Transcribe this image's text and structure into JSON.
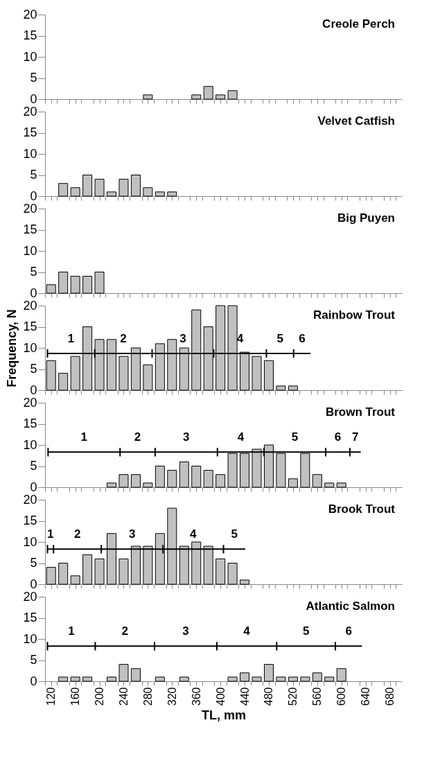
{
  "chart_data": [
    {
      "type": "bar",
      "title": "Creole Perch",
      "xlim": [
        110,
        700
      ],
      "ylim": [
        0,
        20
      ],
      "yticks": [
        0,
        5,
        10,
        15,
        20
      ],
      "tick_labels": "y",
      "xticks": [
        {
          "value": 110,
          "label": null
        },
        120,
        {
          "value": 130,
          "label": null
        },
        {
          "value": 150,
          "label": null
        },
        160,
        {
          "value": 170,
          "label": null
        },
        {
          "value": 190,
          "label": null
        },
        200,
        {
          "value": 210,
          "label": null
        },
        {
          "value": 230,
          "label": null
        },
        240,
        {
          "value": 250,
          "label": null
        },
        {
          "value": 270,
          "label": null
        },
        280,
        {
          "value": 290,
          "label": null
        },
        {
          "value": 310,
          "label": null
        },
        320,
        {
          "value": 330,
          "label": null
        },
        {
          "value": 350,
          "label": null
        },
        360,
        {
          "value": 370,
          "label": null
        },
        {
          "value": 390,
          "label": null
        },
        400,
        {
          "value": 410,
          "label": null
        },
        {
          "value": 430,
          "label": null
        },
        440,
        {
          "value": 450,
          "label": null
        },
        {
          "value": 470,
          "label": null
        },
        480,
        {
          "value": 490,
          "label": null
        },
        {
          "value": 510,
          "label": null
        },
        520,
        {
          "value": 530,
          "label": null
        },
        {
          "value": 550,
          "label": null
        },
        560,
        {
          "value": 570,
          "label": null
        },
        {
          "value": 590,
          "label": null
        },
        600,
        {
          "value": 610,
          "label": null
        },
        {
          "value": 630,
          "label": null
        },
        640,
        {
          "value": 650,
          "label": null
        },
        {
          "value": 670,
          "label": null
        },
        680,
        {
          "value": 690,
          "label": null
        }
      ],
      "series": [
        {
          "color": "#c0c0c0",
          "x": [
            280,
            360,
            380,
            400,
            420
          ],
          "values": [
            1,
            1,
            3,
            1,
            2
          ]
        }
      ]
    },
    {
      "type": "bar",
      "title": "Velvet Catfish",
      "xlim": [
        110,
        700
      ],
      "ylim": [
        0,
        20
      ],
      "yticks": [
        0,
        5,
        10,
        15,
        20
      ],
      "tick_labels": "y",
      "xticks": [
        {
          "value": 110,
          "label": null
        },
        120,
        {
          "value": 130,
          "label": null
        },
        {
          "value": 150,
          "label": null
        },
        160,
        {
          "value": 170,
          "label": null
        },
        {
          "value": 190,
          "label": null
        },
        200,
        {
          "value": 210,
          "label": null
        },
        {
          "value": 230,
          "label": null
        },
        240,
        {
          "value": 250,
          "label": null
        },
        {
          "value": 270,
          "label": null
        },
        280,
        {
          "value": 290,
          "label": null
        },
        {
          "value": 310,
          "label": null
        },
        320,
        {
          "value": 330,
          "label": null
        },
        {
          "value": 350,
          "label": null
        },
        360,
        {
          "value": 370,
          "label": null
        },
        {
          "value": 390,
          "label": null
        },
        400,
        {
          "value": 410,
          "label": null
        },
        {
          "value": 430,
          "label": null
        },
        440,
        {
          "value": 450,
          "label": null
        },
        {
          "value": 470,
          "label": null
        },
        480,
        {
          "value": 490,
          "label": null
        },
        {
          "value": 510,
          "label": null
        },
        520,
        {
          "value": 530,
          "label": null
        },
        {
          "value": 550,
          "label": null
        },
        560,
        {
          "value": 570,
          "label": null
        },
        {
          "value": 590,
          "label": null
        },
        600,
        {
          "value": 610,
          "label": null
        },
        {
          "value": 630,
          "label": null
        },
        640,
        {
          "value": 650,
          "label": null
        },
        {
          "value": 670,
          "label": null
        },
        680,
        {
          "value": 690,
          "label": null
        }
      ],
      "series": [
        {
          "color": "#c0c0c0",
          "x": [
            140,
            160,
            180,
            200,
            220,
            240,
            260,
            280,
            300,
            320
          ],
          "values": [
            3,
            2,
            5,
            4,
            1,
            4,
            5,
            2,
            1,
            1
          ]
        }
      ]
    },
    {
      "type": "bar",
      "title": "Big Puyen",
      "xlim": [
        110,
        700
      ],
      "ylim": [
        0,
        20
      ],
      "yticks": [
        0,
        5,
        10,
        15,
        20
      ],
      "tick_labels": "y",
      "xticks": [
        {
          "value": 110,
          "label": null
        },
        120,
        {
          "value": 130,
          "label": null
        },
        {
          "value": 150,
          "label": null
        },
        160,
        {
          "value": 170,
          "label": null
        },
        {
          "value": 190,
          "label": null
        },
        200,
        {
          "value": 210,
          "label": null
        },
        {
          "value": 230,
          "label": null
        },
        240,
        {
          "value": 250,
          "label": null
        },
        {
          "value": 270,
          "label": null
        },
        280,
        {
          "value": 290,
          "label": null
        },
        {
          "value": 310,
          "label": null
        },
        320,
        {
          "value": 330,
          "label": null
        },
        {
          "value": 350,
          "label": null
        },
        360,
        {
          "value": 370,
          "label": null
        },
        {
          "value": 390,
          "label": null
        },
        400,
        {
          "value": 410,
          "label": null
        },
        {
          "value": 430,
          "label": null
        },
        440,
        {
          "value": 450,
          "label": null
        },
        {
          "value": 470,
          "label": null
        },
        480,
        {
          "value": 490,
          "label": null
        },
        {
          "value": 510,
          "label": null
        },
        520,
        {
          "value": 530,
          "label": null
        },
        {
          "value": 550,
          "label": null
        },
        560,
        {
          "value": 570,
          "label": null
        },
        {
          "value": 590,
          "label": null
        },
        600,
        {
          "value": 610,
          "label": null
        },
        {
          "value": 630,
          "label": null
        },
        640,
        {
          "value": 650,
          "label": null
        },
        {
          "value": 670,
          "label": null
        },
        680,
        {
          "value": 690,
          "label": null
        }
      ],
      "series": [
        {
          "color": "#c0c0c0",
          "x": [
            120,
            140,
            160,
            180,
            200
          ],
          "values": [
            2,
            5,
            4,
            4,
            5
          ]
        }
      ]
    },
    {
      "type": "bar",
      "title": "Rainbow Trout",
      "ylabel": "Frequency, N",
      "xlim": [
        110,
        700
      ],
      "ylim": [
        0,
        20
      ],
      "yticks": [
        0,
        5,
        10,
        15,
        20
      ],
      "tick_labels": "y",
      "xticks": [
        {
          "value": 110,
          "label": null
        },
        120,
        {
          "value": 130,
          "label": null
        },
        {
          "value": 150,
          "label": null
        },
        160,
        {
          "value": 170,
          "label": null
        },
        {
          "value": 190,
          "label": null
        },
        200,
        {
          "value": 210,
          "label": null
        },
        {
          "value": 230,
          "label": null
        },
        240,
        {
          "value": 250,
          "label": null
        },
        {
          "value": 270,
          "label": null
        },
        280,
        {
          "value": 290,
          "label": null
        },
        {
          "value": 310,
          "label": null
        },
        320,
        {
          "value": 330,
          "label": null
        },
        {
          "value": 350,
          "label": null
        },
        360,
        {
          "value": 370,
          "label": null
        },
        {
          "value": 390,
          "label": null
        },
        400,
        {
          "value": 410,
          "label": null
        },
        {
          "value": 430,
          "label": null
        },
        440,
        {
          "value": 450,
          "label": null
        },
        {
          "value": 470,
          "label": null
        },
        480,
        {
          "value": 490,
          "label": null
        },
        {
          "value": 510,
          "label": null
        },
        520,
        {
          "value": 530,
          "label": null
        },
        {
          "value": 550,
          "label": null
        },
        560,
        {
          "value": 570,
          "label": null
        },
        {
          "value": 590,
          "label": null
        },
        600,
        {
          "value": 610,
          "label": null
        },
        {
          "value": 630,
          "label": null
        },
        640,
        {
          "value": 650,
          "label": null
        },
        {
          "value": 670,
          "label": null
        },
        680,
        {
          "value": 690,
          "label": null
        }
      ],
      "series": [
        {
          "color": "#c0c0c0",
          "x": [
            120,
            140,
            160,
            180,
            200,
            220,
            240,
            260,
            280,
            300,
            320,
            340,
            360,
            380,
            400,
            420,
            440,
            460,
            480,
            500,
            520
          ],
          "values": [
            7,
            4,
            8,
            15,
            12,
            12,
            8,
            10,
            6,
            11,
            12,
            10,
            19,
            15,
            20,
            20,
            9,
            8,
            7,
            1,
            1
          ]
        },
        {
          "type": "line",
          "color": "#000000",
          "x": [
            114,
            192,
            287,
            389,
            476,
            521,
            549
          ],
          "values": [
            8.7,
            8.7,
            8.7,
            8.7,
            8.7,
            8.7,
            8.7
          ],
          "errors": [
            1,
            1,
            1,
            1,
            1,
            1,
            null
          ]
        }
      ],
      "annotations": [
        "1",
        "2",
        "3",
        "4",
        "5",
        "6"
      ]
    },
    {
      "type": "bar",
      "title": "Brown Trout",
      "xlim": [
        110,
        700
      ],
      "ylim": [
        0,
        20
      ],
      "yticks": [
        0,
        5,
        10,
        15,
        20
      ],
      "tick_labels": "y",
      "xticks": [
        {
          "value": 110,
          "label": null
        },
        120,
        {
          "value": 130,
          "label": null
        },
        {
          "value": 150,
          "label": null
        },
        160,
        {
          "value": 170,
          "label": null
        },
        {
          "value": 190,
          "label": null
        },
        200,
        {
          "value": 210,
          "label": null
        },
        {
          "value": 230,
          "label": null
        },
        240,
        {
          "value": 250,
          "label": null
        },
        {
          "value": 270,
          "label": null
        },
        280,
        {
          "value": 290,
          "label": null
        },
        {
          "value": 310,
          "label": null
        },
        320,
        {
          "value": 330,
          "label": null
        },
        {
          "value": 350,
          "label": null
        },
        360,
        {
          "value": 370,
          "label": null
        },
        {
          "value": 390,
          "label": null
        },
        400,
        {
          "value": 410,
          "label": null
        },
        {
          "value": 430,
          "label": null
        },
        440,
        {
          "value": 450,
          "label": null
        },
        {
          "value": 470,
          "label": null
        },
        480,
        {
          "value": 490,
          "label": null
        },
        {
          "value": 510,
          "label": null
        },
        520,
        {
          "value": 530,
          "label": null
        },
        {
          "value": 550,
          "label": null
        },
        560,
        {
          "value": 570,
          "label": null
        },
        {
          "value": 590,
          "label": null
        },
        600,
        {
          "value": 610,
          "label": null
        },
        {
          "value": 630,
          "label": null
        },
        640,
        {
          "value": 650,
          "label": null
        },
        {
          "value": 670,
          "label": null
        },
        680,
        {
          "value": 690,
          "label": null
        }
      ],
      "series": [
        {
          "color": "#c0c0c0",
          "x": [
            220,
            240,
            260,
            280,
            300,
            320,
            340,
            360,
            380,
            400,
            420,
            440,
            460,
            480,
            500,
            520,
            540,
            560,
            580,
            600
          ],
          "values": [
            1,
            3,
            3,
            1,
            5,
            4,
            6,
            5,
            4,
            3,
            8,
            8,
            9,
            10,
            8,
            2,
            8,
            3,
            1,
            1
          ]
        },
        {
          "type": "line",
          "color": "#000000",
          "x": [
            115,
            234,
            292,
            395,
            472,
            574,
            614,
            632
          ],
          "values": [
            8.3,
            8.3,
            8.3,
            8.3,
            8.3,
            8.3,
            8.3,
            8.3
          ],
          "errors": [
            1,
            1,
            1,
            1,
            1,
            1,
            1,
            null
          ]
        }
      ],
      "annotations": [
        "1",
        "2",
        "3",
        "4",
        "5",
        "6",
        "7"
      ]
    },
    {
      "type": "bar",
      "title": "Brook Trout",
      "xlim": [
        110,
        700
      ],
      "ylim": [
        0,
        20
      ],
      "yticks": [
        0,
        5,
        10,
        15,
        20
      ],
      "tick_labels": "y",
      "xticks": [
        {
          "value": 110,
          "label": null
        },
        120,
        {
          "value": 130,
          "label": null
        },
        {
          "value": 150,
          "label": null
        },
        160,
        {
          "value": 170,
          "label": null
        },
        {
          "value": 190,
          "label": null
        },
        200,
        {
          "value": 210,
          "label": null
        },
        {
          "value": 230,
          "label": null
        },
        240,
        {
          "value": 250,
          "label": null
        },
        {
          "value": 270,
          "label": null
        },
        280,
        {
          "value": 290,
          "label": null
        },
        {
          "value": 310,
          "label": null
        },
        320,
        {
          "value": 330,
          "label": null
        },
        {
          "value": 350,
          "label": null
        },
        360,
        {
          "value": 370,
          "label": null
        },
        {
          "value": 390,
          "label": null
        },
        400,
        {
          "value": 410,
          "label": null
        },
        {
          "value": 430,
          "label": null
        },
        440,
        {
          "value": 450,
          "label": null
        },
        {
          "value": 470,
          "label": null
        },
        480,
        {
          "value": 490,
          "label": null
        },
        {
          "value": 510,
          "label": null
        },
        520,
        {
          "value": 530,
          "label": null
        },
        {
          "value": 550,
          "label": null
        },
        560,
        {
          "value": 570,
          "label": null
        },
        {
          "value": 590,
          "label": null
        },
        600,
        {
          "value": 610,
          "label": null
        },
        {
          "value": 630,
          "label": null
        },
        640,
        {
          "value": 650,
          "label": null
        },
        {
          "value": 670,
          "label": null
        },
        680,
        {
          "value": 690,
          "label": null
        }
      ],
      "series": [
        {
          "color": "#c0c0c0",
          "x": [
            120,
            140,
            160,
            180,
            200,
            220,
            240,
            260,
            280,
            300,
            320,
            340,
            360,
            380,
            400,
            420,
            440
          ],
          "values": [
            4,
            5,
            2,
            7,
            6,
            12,
            6,
            9,
            9,
            12,
            18,
            9,
            10,
            9,
            6,
            5,
            1
          ]
        },
        {
          "type": "line",
          "color": "#000000",
          "x": [
            114,
            124,
            203,
            305,
            405,
            441
          ],
          "values": [
            8.3,
            8.3,
            8.3,
            8.3,
            8.3,
            8.3
          ],
          "errors": [
            1,
            1,
            1,
            1,
            1,
            null
          ]
        }
      ],
      "annotations": [
        "1",
        "2",
        "3",
        "4",
        "5"
      ]
    },
    {
      "type": "bar",
      "title": "Atlantic Salmon",
      "xlabel": "TL, mm",
      "xlim": [
        110,
        700
      ],
      "ylim": [
        0,
        20
      ],
      "yticks": [
        0,
        5,
        10,
        15,
        20
      ],
      "xticks": [
        {
          "value": 110,
          "label": null
        },
        120,
        {
          "value": 130,
          "label": null
        },
        {
          "value": 150,
          "label": null
        },
        160,
        {
          "value": 170,
          "label": null
        },
        {
          "value": 190,
          "label": null
        },
        200,
        {
          "value": 210,
          "label": null
        },
        {
          "value": 230,
          "label": null
        },
        240,
        {
          "value": 250,
          "label": null
        },
        {
          "value": 270,
          "label": null
        },
        280,
        {
          "value": 290,
          "label": null
        },
        {
          "value": 310,
          "label": null
        },
        320,
        {
          "value": 330,
          "label": null
        },
        {
          "value": 350,
          "label": null
        },
        360,
        {
          "value": 370,
          "label": null
        },
        {
          "value": 390,
          "label": null
        },
        400,
        {
          "value": 410,
          "label": null
        },
        {
          "value": 430,
          "label": null
        },
        440,
        {
          "value": 450,
          "label": null
        },
        {
          "value": 470,
          "label": null
        },
        480,
        {
          "value": 490,
          "label": null
        },
        {
          "value": 510,
          "label": null
        },
        520,
        {
          "value": 530,
          "label": null
        },
        {
          "value": 550,
          "label": null
        },
        560,
        {
          "value": 570,
          "label": null
        },
        {
          "value": 590,
          "label": null
        },
        600,
        {
          "value": 610,
          "label": null
        },
        {
          "value": 630,
          "label": null
        },
        640,
        {
          "value": 650,
          "label": null
        },
        {
          "value": 670,
          "label": null
        },
        680,
        {
          "value": 690,
          "label": null
        }
      ],
      "series": [
        {
          "color": "#c0c0c0",
          "x": [
            140,
            160,
            180,
            220,
            240,
            260,
            300,
            340,
            420,
            440,
            460,
            480,
            500,
            520,
            540,
            560,
            580,
            600
          ],
          "values": [
            1,
            1,
            1,
            1,
            4,
            3,
            1,
            1,
            1,
            2,
            1,
            4,
            1,
            1,
            1,
            2,
            1,
            3
          ]
        },
        {
          "type": "line",
          "color": "#000000",
          "x": [
            114,
            193,
            291,
            394,
            493,
            590,
            634
          ],
          "values": [
            8.3,
            8.3,
            8.3,
            8.3,
            8.3,
            8.3,
            8.3
          ],
          "errors": [
            1,
            1,
            1,
            1,
            1,
            1,
            null
          ]
        }
      ],
      "annotations": [
        "1",
        "2",
        "3",
        "4",
        "5",
        "6"
      ]
    }
  ]
}
